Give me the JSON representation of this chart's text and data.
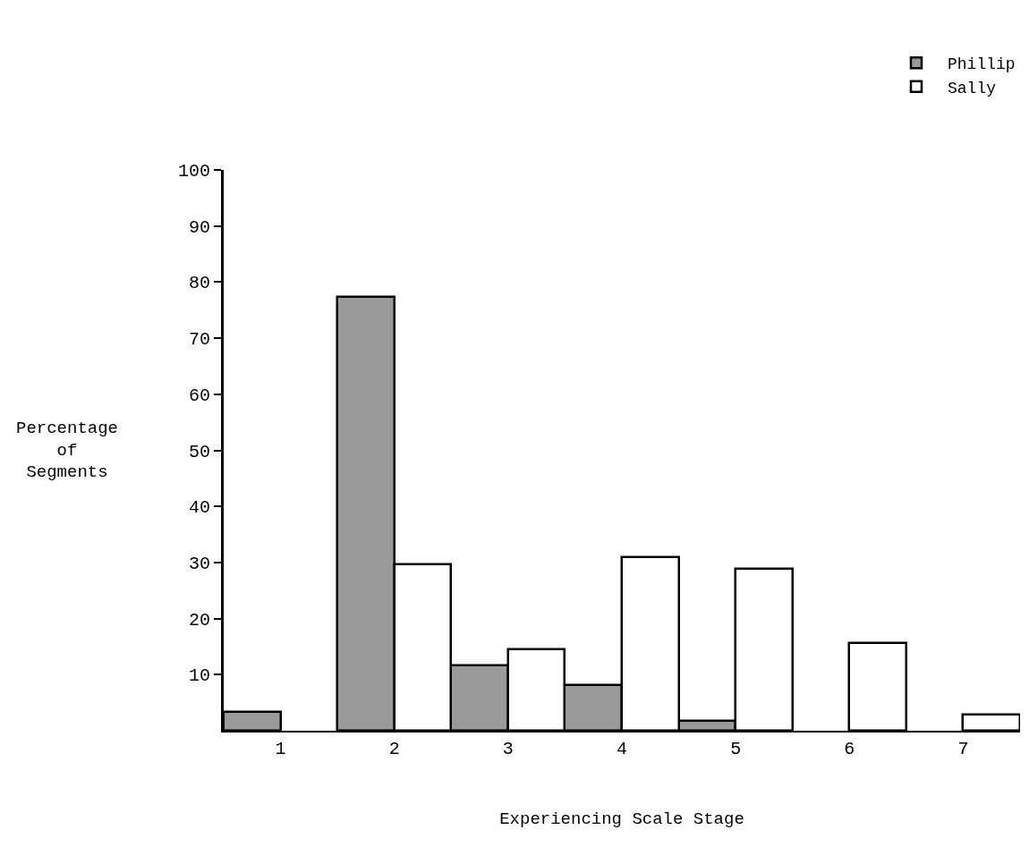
{
  "chart_data": {
    "type": "bar",
    "xlabel": "Experiencing Scale Stage",
    "ylabel": "Percentage\nof\nSegments",
    "categories": [
      "1",
      "2",
      "3",
      "4",
      "5",
      "6",
      "7"
    ],
    "series": [
      {
        "name": "Phillip",
        "color": "#9a9a9a",
        "values": [
          3.4,
          77.3,
          11.6,
          8.2,
          1.8,
          null,
          null
        ]
      },
      {
        "name": "Sally",
        "color": "#ffffff",
        "values": [
          null,
          29.6,
          14.5,
          31,
          28.8,
          15.7,
          2.9
        ]
      }
    ],
    "ylim": [
      0,
      100
    ],
    "yticks": [
      10,
      20,
      30,
      40,
      50,
      60,
      70,
      80,
      90,
      100
    ],
    "legend": "top right"
  }
}
